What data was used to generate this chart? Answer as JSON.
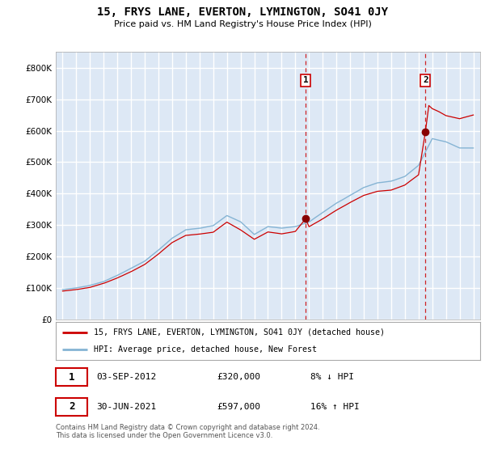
{
  "title": "15, FRYS LANE, EVERTON, LYMINGTON, SO41 0JY",
  "subtitle": "Price paid vs. HM Land Registry's House Price Index (HPI)",
  "property_label": "15, FRYS LANE, EVERTON, LYMINGTON, SO41 0JY (detached house)",
  "hpi_label": "HPI: Average price, detached house, New Forest",
  "sale1_date": "03-SEP-2012",
  "sale1_price": "£320,000",
  "sale1_hpi": "8% ↓ HPI",
  "sale2_date": "30-JUN-2021",
  "sale2_price": "£597,000",
  "sale2_hpi": "16% ↑ HPI",
  "footer": "Contains HM Land Registry data © Crown copyright and database right 2024.\nThis data is licensed under the Open Government Licence v3.0.",
  "property_color": "#cc0000",
  "hpi_color": "#85b4d4",
  "background_color": "#dde8f5",
  "grid_color": "#ffffff",
  "sale1_x_year": 2012.75,
  "sale1_y": 320000,
  "sale2_x_year": 2021.5,
  "sale2_y": 597000,
  "ylim": [
    0,
    850000
  ],
  "xlim_start": 1994.5,
  "xlim_end": 2025.5
}
